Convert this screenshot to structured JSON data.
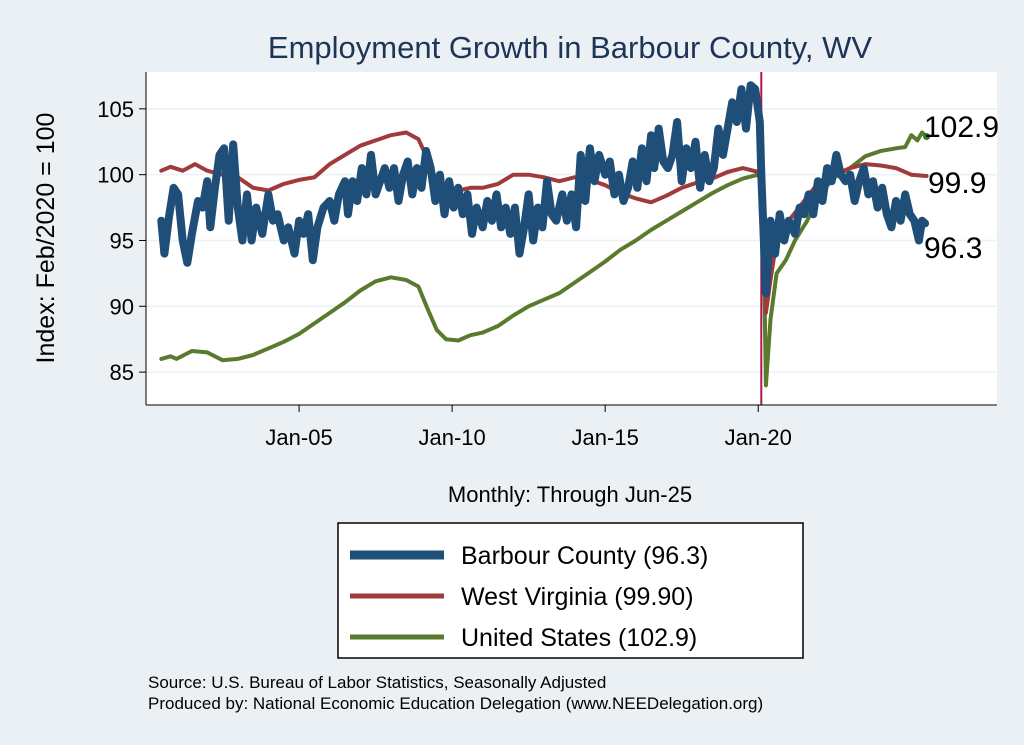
{
  "chart_data": {
    "type": "line",
    "title": "Employment Growth in Barbour  County, WV",
    "ylabel": "Index: Feb/2020 = 100",
    "xlabel": "Monthly: Through Jun-25",
    "ylim": [
      82.5,
      107.8
    ],
    "xlim": [
      2000.0,
      2027.8
    ],
    "yticks": [
      85,
      90,
      95,
      100,
      105
    ],
    "xticks": [
      {
        "x": 2005.0,
        "label": "Jan-05"
      },
      {
        "x": 2010.0,
        "label": "Jan-10"
      },
      {
        "x": 2015.0,
        "label": "Jan-15"
      },
      {
        "x": 2020.0,
        "label": "Jan-20"
      }
    ],
    "reference_line_x": 2020.1,
    "grid": "horizontal",
    "legend_position": "bottom",
    "series": [
      {
        "name": "Barbour  County (96.3)",
        "legend": "Barbour  County (96.3)",
        "end_label": "96.3",
        "color": "#1f4e79",
        "width": 8,
        "points": [
          [
            2000.5,
            96.5
          ],
          [
            2000.6,
            94.0
          ],
          [
            2000.75,
            96.8
          ],
          [
            2000.9,
            99.0
          ],
          [
            2001.05,
            98.5
          ],
          [
            2001.2,
            95.0
          ],
          [
            2001.35,
            93.3
          ],
          [
            2001.5,
            95.5
          ],
          [
            2001.7,
            98.0
          ],
          [
            2001.85,
            97.5
          ],
          [
            2002.0,
            99.5
          ],
          [
            2002.1,
            96.0
          ],
          [
            2002.25,
            99.0
          ],
          [
            2002.4,
            101.5
          ],
          [
            2002.55,
            102.0
          ],
          [
            2002.7,
            96.5
          ],
          [
            2002.85,
            102.3
          ],
          [
            2003.0,
            97.5
          ],
          [
            2003.15,
            95.0
          ],
          [
            2003.3,
            98.5
          ],
          [
            2003.45,
            95.0
          ],
          [
            2003.6,
            97.5
          ],
          [
            2003.8,
            95.5
          ],
          [
            2004.0,
            98.5
          ],
          [
            2004.15,
            96.5
          ],
          [
            2004.3,
            97.0
          ],
          [
            2004.5,
            95.0
          ],
          [
            2004.65,
            96.0
          ],
          [
            2004.85,
            94.0
          ],
          [
            2005.0,
            96.5
          ],
          [
            2005.15,
            95.5
          ],
          [
            2005.3,
            97.0
          ],
          [
            2005.45,
            93.5
          ],
          [
            2005.6,
            96.0
          ],
          [
            2005.8,
            97.5
          ],
          [
            2006.0,
            98.0
          ],
          [
            2006.15,
            96.5
          ],
          [
            2006.3,
            98.5
          ],
          [
            2006.5,
            99.5
          ],
          [
            2006.6,
            97.0
          ],
          [
            2006.75,
            99.5
          ],
          [
            2006.9,
            98.0
          ],
          [
            2007.05,
            100.5
          ],
          [
            2007.2,
            98.5
          ],
          [
            2007.35,
            101.5
          ],
          [
            2007.5,
            98.5
          ],
          [
            2007.65,
            99.5
          ],
          [
            2007.8,
            100.5
          ],
          [
            2007.95,
            99.0
          ],
          [
            2008.1,
            100.5
          ],
          [
            2008.25,
            98.0
          ],
          [
            2008.4,
            100.0
          ],
          [
            2008.55,
            101.0
          ],
          [
            2008.7,
            98.5
          ],
          [
            2008.85,
            100.5
          ],
          [
            2009.0,
            99.0
          ],
          [
            2009.15,
            101.8
          ],
          [
            2009.3,
            100.5
          ],
          [
            2009.45,
            98.0
          ],
          [
            2009.6,
            100.0
          ],
          [
            2009.75,
            97.0
          ],
          [
            2009.9,
            99.5
          ],
          [
            2010.05,
            97.5
          ],
          [
            2010.2,
            99.0
          ],
          [
            2010.35,
            97.0
          ],
          [
            2010.5,
            98.5
          ],
          [
            2010.65,
            95.5
          ],
          [
            2010.8,
            97.5
          ],
          [
            2011.0,
            96.0
          ],
          [
            2011.15,
            98.0
          ],
          [
            2011.3,
            96.5
          ],
          [
            2011.45,
            98.5
          ],
          [
            2011.6,
            96.0
          ],
          [
            2011.75,
            97.5
          ],
          [
            2011.9,
            95.5
          ],
          [
            2012.05,
            97.5
          ],
          [
            2012.2,
            94.0
          ],
          [
            2012.35,
            96.0
          ],
          [
            2012.5,
            98.5
          ],
          [
            2012.65,
            95.0
          ],
          [
            2012.8,
            97.5
          ],
          [
            2012.95,
            96.0
          ],
          [
            2013.1,
            99.5
          ],
          [
            2013.25,
            97.0
          ],
          [
            2013.4,
            96.5
          ],
          [
            2013.6,
            98.5
          ],
          [
            2013.75,
            96.5
          ],
          [
            2013.9,
            98.5
          ],
          [
            2014.05,
            96.0
          ],
          [
            2014.2,
            101.5
          ],
          [
            2014.35,
            98.0
          ],
          [
            2014.5,
            102.0
          ],
          [
            2014.65,
            99.5
          ],
          [
            2014.8,
            101.5
          ],
          [
            2015.0,
            100.0
          ],
          [
            2015.15,
            101.0
          ],
          [
            2015.3,
            98.5
          ],
          [
            2015.45,
            100.0
          ],
          [
            2015.6,
            98.0
          ],
          [
            2015.75,
            99.0
          ],
          [
            2015.9,
            101.0
          ],
          [
            2016.05,
            99.0
          ],
          [
            2016.2,
            102.0
          ],
          [
            2016.35,
            99.5
          ],
          [
            2016.5,
            103.0
          ],
          [
            2016.6,
            100.5
          ],
          [
            2016.75,
            103.5
          ],
          [
            2016.9,
            101.0
          ],
          [
            2017.05,
            100.5
          ],
          [
            2017.2,
            101.5
          ],
          [
            2017.35,
            104.0
          ],
          [
            2017.5,
            99.5
          ],
          [
            2017.65,
            102.0
          ],
          [
            2017.8,
            100.5
          ],
          [
            2017.95,
            102.5
          ],
          [
            2018.1,
            99.0
          ],
          [
            2018.25,
            101.5
          ],
          [
            2018.4,
            99.5
          ],
          [
            2018.55,
            100.5
          ],
          [
            2018.7,
            103.5
          ],
          [
            2018.85,
            101.5
          ],
          [
            2019.0,
            103.5
          ],
          [
            2019.15,
            105.5
          ],
          [
            2019.3,
            104.0
          ],
          [
            2019.45,
            106.5
          ],
          [
            2019.6,
            103.5
          ],
          [
            2019.75,
            106.8
          ],
          [
            2019.9,
            106.5
          ],
          [
            2020.05,
            104.0
          ],
          [
            2020.1,
            100.0
          ],
          [
            2020.25,
            91.0
          ],
          [
            2020.4,
            96.5
          ],
          [
            2020.55,
            94.0
          ],
          [
            2020.7,
            97.0
          ],
          [
            2020.85,
            95.0
          ],
          [
            2021.0,
            96.5
          ],
          [
            2021.2,
            95.5
          ],
          [
            2021.35,
            97.5
          ],
          [
            2021.5,
            97.0
          ],
          [
            2021.65,
            98.5
          ],
          [
            2021.8,
            97.0
          ],
          [
            2021.95,
            99.5
          ],
          [
            2022.1,
            98.0
          ],
          [
            2022.25,
            100.5
          ],
          [
            2022.4,
            99.5
          ],
          [
            2022.55,
            101.5
          ],
          [
            2022.7,
            100.0
          ],
          [
            2022.85,
            99.5
          ],
          [
            2023.0,
            100.0
          ],
          [
            2023.15,
            98.0
          ],
          [
            2023.3,
            99.5
          ],
          [
            2023.45,
            100.5
          ],
          [
            2023.6,
            98.5
          ],
          [
            2023.75,
            99.5
          ],
          [
            2023.9,
            97.5
          ],
          [
            2024.05,
            99.0
          ],
          [
            2024.2,
            97.0
          ],
          [
            2024.35,
            96.0
          ],
          [
            2024.5,
            98.0
          ],
          [
            2024.65,
            96.5
          ],
          [
            2024.8,
            98.5
          ],
          [
            2024.95,
            97.0
          ],
          [
            2025.1,
            96.5
          ],
          [
            2025.25,
            95.0
          ],
          [
            2025.35,
            96.5
          ],
          [
            2025.45,
            96.3
          ]
        ]
      },
      {
        "name": "West Virginia (99.90)",
        "legend": "West Virginia (99.90)",
        "end_label": "99.9",
        "color": "#a13a3a",
        "width": 4,
        "points": [
          [
            2000.5,
            100.3
          ],
          [
            2000.8,
            100.6
          ],
          [
            2001.2,
            100.3
          ],
          [
            2001.6,
            100.8
          ],
          [
            2002.0,
            100.3
          ],
          [
            2002.5,
            100.0
          ],
          [
            2003.0,
            99.8
          ],
          [
            2003.5,
            99.0
          ],
          [
            2004.0,
            98.8
          ],
          [
            2004.5,
            99.3
          ],
          [
            2005.0,
            99.6
          ],
          [
            2005.5,
            99.8
          ],
          [
            2006.0,
            100.8
          ],
          [
            2006.5,
            101.5
          ],
          [
            2007.0,
            102.2
          ],
          [
            2007.5,
            102.6
          ],
          [
            2008.0,
            103.0
          ],
          [
            2008.5,
            103.2
          ],
          [
            2008.9,
            102.7
          ],
          [
            2009.2,
            101.2
          ],
          [
            2009.5,
            99.5
          ],
          [
            2009.8,
            98.8
          ],
          [
            2010.2,
            98.8
          ],
          [
            2010.6,
            99.0
          ],
          [
            2011.0,
            99.0
          ],
          [
            2011.5,
            99.3
          ],
          [
            2012.0,
            100.0
          ],
          [
            2012.5,
            100.0
          ],
          [
            2013.0,
            99.8
          ],
          [
            2013.5,
            99.5
          ],
          [
            2014.0,
            99.8
          ],
          [
            2014.5,
            99.6
          ],
          [
            2015.0,
            99.2
          ],
          [
            2015.5,
            98.6
          ],
          [
            2016.0,
            98.2
          ],
          [
            2016.5,
            97.9
          ],
          [
            2017.0,
            98.4
          ],
          [
            2017.5,
            99.0
          ],
          [
            2018.0,
            99.4
          ],
          [
            2018.5,
            99.7
          ],
          [
            2019.0,
            100.2
          ],
          [
            2019.5,
            100.5
          ],
          [
            2020.0,
            100.2
          ],
          [
            2020.15,
            99.0
          ],
          [
            2020.25,
            89.5
          ],
          [
            2020.4,
            92.0
          ],
          [
            2020.6,
            95.0
          ],
          [
            2021.0,
            96.5
          ],
          [
            2021.5,
            98.0
          ],
          [
            2022.0,
            99.5
          ],
          [
            2022.5,
            100.0
          ],
          [
            2023.0,
            100.5
          ],
          [
            2023.5,
            100.8
          ],
          [
            2024.0,
            100.7
          ],
          [
            2024.5,
            100.5
          ],
          [
            2025.0,
            100.0
          ],
          [
            2025.5,
            99.9
          ]
        ]
      },
      {
        "name": "United States (102.9)",
        "legend": "United States (102.9)",
        "end_label": "102.9",
        "color": "#5a7a2e",
        "width": 4,
        "points": [
          [
            2000.5,
            86.0
          ],
          [
            2000.8,
            86.2
          ],
          [
            2001.0,
            86.0
          ],
          [
            2001.5,
            86.6
          ],
          [
            2002.0,
            86.5
          ],
          [
            2002.5,
            85.9
          ],
          [
            2003.0,
            86.0
          ],
          [
            2003.5,
            86.3
          ],
          [
            2004.0,
            86.8
          ],
          [
            2004.5,
            87.3
          ],
          [
            2005.0,
            87.9
          ],
          [
            2005.5,
            88.7
          ],
          [
            2006.0,
            89.5
          ],
          [
            2006.5,
            90.3
          ],
          [
            2007.0,
            91.2
          ],
          [
            2007.5,
            91.9
          ],
          [
            2008.0,
            92.2
          ],
          [
            2008.5,
            92.0
          ],
          [
            2008.9,
            91.5
          ],
          [
            2009.2,
            89.8
          ],
          [
            2009.5,
            88.2
          ],
          [
            2009.8,
            87.5
          ],
          [
            2010.2,
            87.4
          ],
          [
            2010.6,
            87.8
          ],
          [
            2011.0,
            88.0
          ],
          [
            2011.5,
            88.5
          ],
          [
            2012.0,
            89.3
          ],
          [
            2012.5,
            90.0
          ],
          [
            2013.0,
            90.5
          ],
          [
            2013.5,
            91.0
          ],
          [
            2014.0,
            91.8
          ],
          [
            2014.5,
            92.6
          ],
          [
            2015.0,
            93.4
          ],
          [
            2015.5,
            94.3
          ],
          [
            2016.0,
            95.0
          ],
          [
            2016.5,
            95.8
          ],
          [
            2017.0,
            96.5
          ],
          [
            2017.5,
            97.2
          ],
          [
            2018.0,
            97.9
          ],
          [
            2018.5,
            98.6
          ],
          [
            2019.0,
            99.2
          ],
          [
            2019.5,
            99.7
          ],
          [
            2020.0,
            100.0
          ],
          [
            2020.15,
            99.2
          ],
          [
            2020.25,
            84.0
          ],
          [
            2020.4,
            89.0
          ],
          [
            2020.6,
            92.5
          ],
          [
            2020.9,
            93.5
          ],
          [
            2021.2,
            95.0
          ],
          [
            2021.6,
            96.5
          ],
          [
            2022.0,
            98.5
          ],
          [
            2022.5,
            99.8
          ],
          [
            2023.0,
            100.5
          ],
          [
            2023.5,
            101.4
          ],
          [
            2024.0,
            101.8
          ],
          [
            2024.5,
            102.0
          ],
          [
            2024.8,
            102.1
          ],
          [
            2025.0,
            103.0
          ],
          [
            2025.2,
            102.6
          ],
          [
            2025.35,
            103.2
          ],
          [
            2025.5,
            102.9
          ]
        ]
      }
    ],
    "end_marker": {
      "x": 2025.5,
      "y": 102.9,
      "color": "#2e7d1e"
    },
    "notes": [
      "Source: U.S. Bureau of Labor Statistics, Seasonally Adjusted",
      "Produced by: National Economic Education Delegation (www.NEEDelegation.org)"
    ],
    "colors": {
      "background": "#ebf0f5",
      "plot_background": "#ffffff",
      "grid": "#eaf2f3",
      "reference_line": "#b0174c",
      "title": "#1e3556"
    }
  }
}
